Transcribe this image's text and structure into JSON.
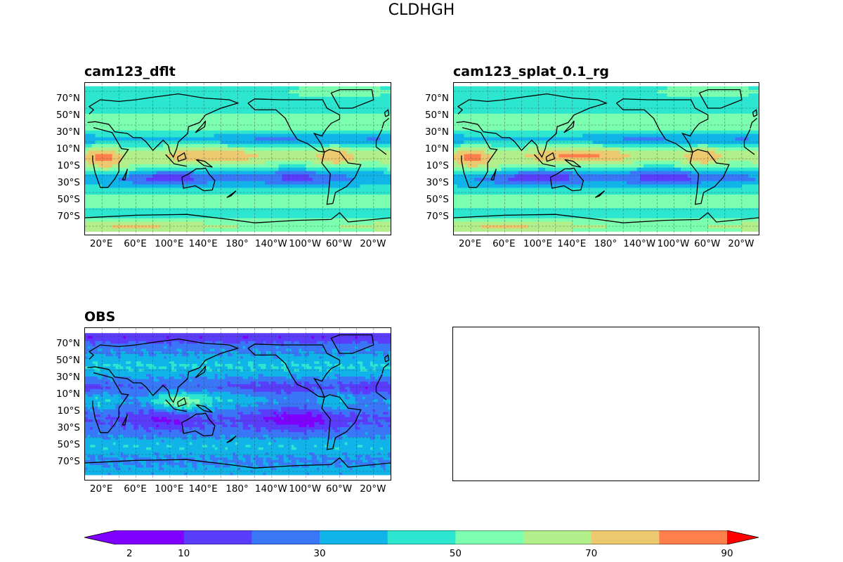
{
  "figure": {
    "title": "CLDHGH"
  },
  "panels": [
    {
      "id": "p1",
      "title": "cam123_dflt",
      "field": "model"
    },
    {
      "id": "p2",
      "title": "cam123_splat_0.1_rg",
      "field": "model"
    },
    {
      "id": "p3",
      "title": "OBS",
      "field": "obs"
    }
  ],
  "axes": {
    "lat_ticks": [
      "70°N",
      "50°N",
      "30°N",
      "10°N",
      "10°S",
      "30°S",
      "50°S",
      "70°S"
    ],
    "lat_values": [
      70,
      50,
      30,
      10,
      -10,
      -30,
      -50,
      -70
    ],
    "lon_ticks": [
      "20°E",
      "60°E",
      "100°E",
      "140°E",
      "180°",
      "140°W",
      "100°W",
      "60°W",
      "20°W"
    ],
    "lon_values": [
      20,
      60,
      100,
      140,
      180,
      220,
      260,
      300,
      340
    ],
    "lon_range": [
      0,
      360
    ],
    "lat_range": [
      -90,
      90
    ],
    "grid": true
  },
  "colorbar": {
    "levels": [
      0,
      10,
      20,
      30,
      40,
      50,
      60,
      70,
      80,
      90
    ],
    "labels": [
      "2",
      "10",
      "30",
      "50",
      "70",
      "90"
    ],
    "label_values": [
      2,
      10,
      30,
      50,
      70,
      90
    ],
    "colors": [
      "#7f00ff",
      "#5a3cfb",
      "#3977f7",
      "#11b4e8",
      "#2de6d0",
      "#7cfeb0",
      "#b2ee8a",
      "#ecc86e",
      "#ff7f4c",
      "#ff3319"
    ],
    "under_color": "#7f00ff",
    "over_color": "#ff0000",
    "extend": "both"
  }
}
